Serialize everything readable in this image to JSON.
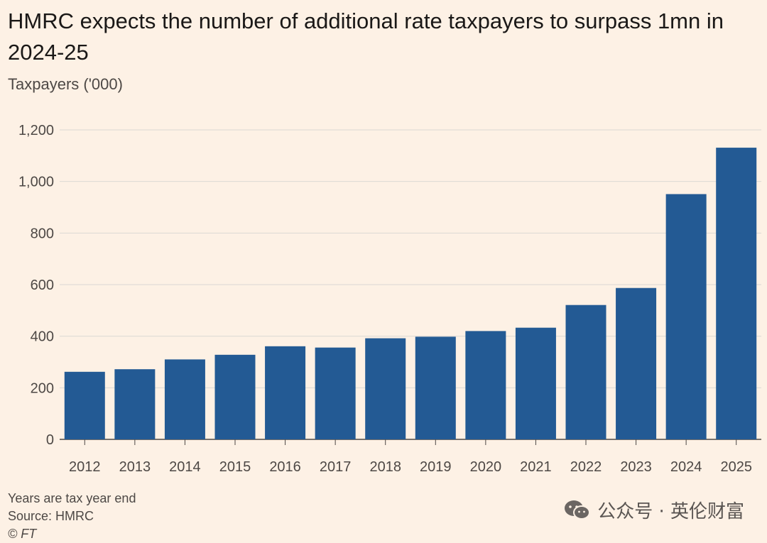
{
  "chart_data": {
    "type": "bar",
    "title": "HMRC expects the number of additional rate taxpayers to surpass 1mn in 2024-25",
    "ylabel": "Taxpayers ('000)",
    "xlabel": "",
    "categories": [
      "2012",
      "2013",
      "2014",
      "2015",
      "2016",
      "2017",
      "2018",
      "2019",
      "2020",
      "2021",
      "2022",
      "2023",
      "2024",
      "2025"
    ],
    "values": [
      262,
      272,
      310,
      328,
      361,
      356,
      392,
      398,
      420,
      433,
      521,
      587,
      951,
      1131
    ],
    "ylim": [
      0,
      1200
    ],
    "yticks": [
      0,
      200,
      400,
      600,
      800,
      1000,
      1200
    ],
    "ytick_labels": [
      "0",
      "200",
      "400",
      "600",
      "800",
      "1,000",
      "1,200"
    ],
    "grid": true,
    "colors": {
      "bar": "#235a94",
      "grid": "#dcd8d4",
      "axis": "#4d4845",
      "background": "#fdf1e5"
    }
  },
  "footer": {
    "note": "Years are tax year end",
    "source": "Source: HMRC",
    "credit": "© FT"
  },
  "watermark": {
    "icon": "wechat-icon",
    "text": "公众号 · 英伦财富"
  }
}
